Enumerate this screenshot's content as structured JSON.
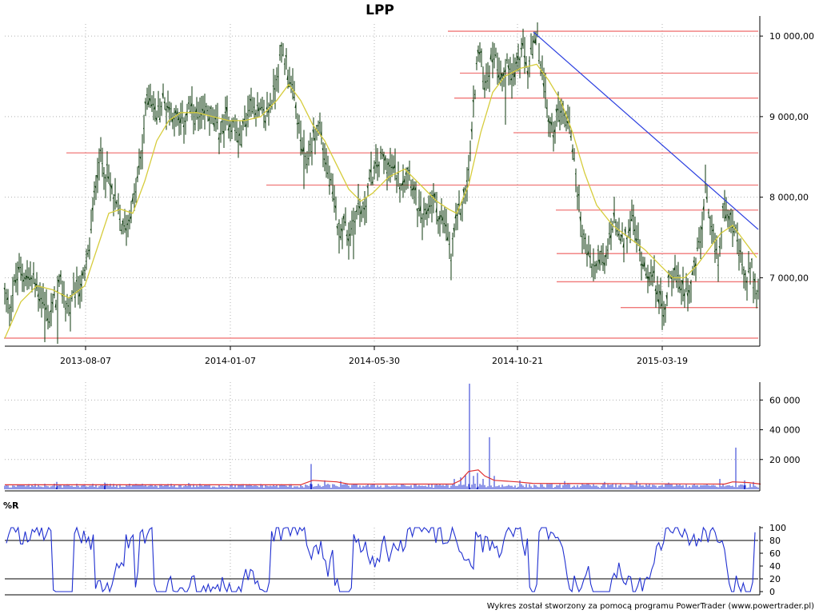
{
  "chart_data": [
    {
      "panel": "price",
      "type": "ohlc",
      "title": "LPP",
      "ylim": [
        6200,
        10150
      ],
      "y_ticks": [
        7000,
        8000,
        9000,
        10000
      ],
      "y_tick_labels": [
        "7 000,00",
        "8 000,00",
        "9 000,00",
        "10 000,00"
      ],
      "x_tick_labels": [
        "2013-08-07",
        "2014-01-07",
        "2014-05-30",
        "2014-10-21",
        "2015-03-19"
      ],
      "grid": true,
      "colors": {
        "bars": "#0c3a0c",
        "moving_average": "#d6cc3c",
        "levels": "#f07878",
        "trendline": "#2b3fe0"
      },
      "close_path": [
        [
          0,
          6800
        ],
        [
          6,
          6650
        ],
        [
          12,
          6900
        ],
        [
          20,
          7100
        ],
        [
          28,
          7000
        ],
        [
          36,
          6950
        ],
        [
          44,
          6800
        ],
        [
          50,
          6650
        ],
        [
          56,
          6500
        ],
        [
          62,
          6700
        ],
        [
          70,
          6900
        ],
        [
          76,
          6700
        ],
        [
          82,
          6600
        ],
        [
          88,
          6800
        ],
        [
          94,
          6900
        ],
        [
          100,
          7000
        ],
        [
          106,
          7400
        ],
        [
          110,
          7800
        ],
        [
          114,
          8200
        ],
        [
          118,
          8500
        ],
        [
          124,
          8400
        ],
        [
          130,
          8200
        ],
        [
          136,
          8000
        ],
        [
          142,
          7800
        ],
        [
          148,
          7600
        ],
        [
          154,
          7700
        ],
        [
          160,
          7900
        ],
        [
          166,
          8200
        ],
        [
          172,
          8600
        ],
        [
          178,
          9300
        ],
        [
          184,
          9200
        ],
        [
          190,
          9000
        ],
        [
          198,
          9200
        ],
        [
          206,
          9100
        ],
        [
          214,
          9000
        ],
        [
          222,
          8900
        ],
        [
          230,
          9100
        ],
        [
          238,
          9000
        ],
        [
          246,
          8950
        ],
        [
          254,
          9100
        ],
        [
          262,
          8900
        ],
        [
          270,
          8800
        ],
        [
          278,
          9000
        ],
        [
          286,
          8900
        ],
        [
          294,
          8700
        ],
        [
          302,
          9000
        ],
        [
          310,
          9200
        ],
        [
          318,
          9050
        ],
        [
          326,
          9000
        ],
        [
          334,
          9200
        ],
        [
          340,
          9500
        ],
        [
          346,
          9800
        ],
        [
          352,
          9700
        ],
        [
          358,
          9350
        ],
        [
          364,
          9100
        ],
        [
          370,
          8700
        ],
        [
          376,
          8400
        ],
        [
          382,
          8600
        ],
        [
          388,
          8800
        ],
        [
          394,
          8900
        ],
        [
          400,
          8500
        ],
        [
          406,
          8200
        ],
        [
          412,
          7900
        ],
        [
          418,
          7600
        ],
        [
          424,
          7700
        ],
        [
          430,
          7500
        ],
        [
          436,
          7700
        ],
        [
          442,
          7900
        ],
        [
          448,
          7800
        ],
        [
          454,
          8100
        ],
        [
          460,
          8300
        ],
        [
          466,
          8400
        ],
        [
          472,
          8500
        ],
        [
          480,
          8400
        ],
        [
          488,
          8300
        ],
        [
          496,
          8200
        ],
        [
          504,
          8400
        ],
        [
          512,
          8100
        ],
        [
          518,
          7800
        ],
        [
          524,
          7700
        ],
        [
          530,
          7900
        ],
        [
          536,
          8000
        ],
        [
          542,
          7800
        ],
        [
          548,
          7700
        ],
        [
          554,
          7500
        ],
        [
          558,
          7200
        ],
        [
          562,
          7600
        ],
        [
          568,
          7800
        ],
        [
          574,
          8000
        ],
        [
          580,
          8300
        ],
        [
          584,
          8800
        ],
        [
          588,
          9400
        ],
        [
          592,
          9800
        ],
        [
          596,
          9700
        ],
        [
          600,
          9400
        ],
        [
          606,
          9600
        ],
        [
          612,
          9800
        ],
        [
          618,
          9600
        ],
        [
          624,
          9500
        ],
        [
          630,
          9700
        ],
        [
          636,
          9500
        ],
        [
          642,
          9700
        ],
        [
          648,
          9800
        ],
        [
          654,
          9600
        ],
        [
          660,
          9800
        ],
        [
          666,
          9950
        ],
        [
          672,
          9500
        ],
        [
          678,
          9100
        ],
        [
          684,
          8800
        ],
        [
          690,
          9000
        ],
        [
          696,
          9100
        ],
        [
          702,
          9000
        ],
        [
          708,
          8800
        ],
        [
          714,
          8300
        ],
        [
          720,
          7700
        ],
        [
          726,
          7400
        ],
        [
          732,
          7200
        ],
        [
          738,
          7100
        ],
        [
          744,
          7300
        ],
        [
          750,
          7100
        ],
        [
          756,
          7500
        ],
        [
          762,
          7700
        ],
        [
          768,
          7500
        ],
        [
          774,
          7400
        ],
        [
          780,
          7600
        ],
        [
          786,
          7700
        ],
        [
          792,
          7400
        ],
        [
          798,
          7200
        ],
        [
          804,
          7100
        ],
        [
          810,
          7000
        ],
        [
          816,
          6900
        ],
        [
          820,
          6700
        ],
        [
          824,
          6500
        ],
        [
          830,
          7000
        ],
        [
          836,
          7100
        ],
        [
          842,
          6900
        ],
        [
          848,
          6900
        ],
        [
          854,
          6850
        ],
        [
          860,
          7000
        ],
        [
          866,
          7300
        ],
        [
          872,
          7600
        ],
        [
          876,
          8100
        ],
        [
          880,
          7700
        ],
        [
          886,
          7500
        ],
        [
          892,
          7200
        ],
        [
          898,
          7800
        ],
        [
          904,
          7900
        ],
        [
          910,
          7700
        ],
        [
          916,
          7400
        ],
        [
          922,
          7100
        ],
        [
          928,
          7000
        ],
        [
          934,
          7100
        ],
        [
          938,
          6900
        ],
        [
          942,
          6800
        ]
      ],
      "moving_average": [
        [
          0,
          6250
        ],
        [
          20,
          6700
        ],
        [
          40,
          6900
        ],
        [
          60,
          6850
        ],
        [
          80,
          6750
        ],
        [
          100,
          6900
        ],
        [
          110,
          7200
        ],
        [
          120,
          7500
        ],
        [
          130,
          7800
        ],
        [
          145,
          7850
        ],
        [
          160,
          7800
        ],
        [
          175,
          8200
        ],
        [
          190,
          8700
        ],
        [
          205,
          8950
        ],
        [
          220,
          9050
        ],
        [
          240,
          9050
        ],
        [
          260,
          9000
        ],
        [
          280,
          8950
        ],
        [
          300,
          8950
        ],
        [
          320,
          9000
        ],
        [
          340,
          9200
        ],
        [
          355,
          9400
        ],
        [
          370,
          9200
        ],
        [
          385,
          8900
        ],
        [
          400,
          8700
        ],
        [
          415,
          8400
        ],
        [
          430,
          8100
        ],
        [
          445,
          7950
        ],
        [
          460,
          8050
        ],
        [
          480,
          8250
        ],
        [
          500,
          8350
        ],
        [
          520,
          8150
        ],
        [
          540,
          7950
        ],
        [
          555,
          7850
        ],
        [
          565,
          7800
        ],
        [
          580,
          8150
        ],
        [
          595,
          8800
        ],
        [
          610,
          9300
        ],
        [
          625,
          9500
        ],
        [
          645,
          9600
        ],
        [
          665,
          9650
        ],
        [
          680,
          9450
        ],
        [
          695,
          9200
        ],
        [
          710,
          8800
        ],
        [
          725,
          8300
        ],
        [
          740,
          7900
        ],
        [
          760,
          7650
        ],
        [
          780,
          7500
        ],
        [
          800,
          7350
        ],
        [
          820,
          7150
        ],
        [
          835,
          7000
        ],
        [
          850,
          7000
        ],
        [
          865,
          7150
        ],
        [
          880,
          7350
        ],
        [
          895,
          7550
        ],
        [
          910,
          7650
        ],
        [
          925,
          7450
        ],
        [
          940,
          7250
        ]
      ],
      "horizontal_levels": [
        {
          "price": 10060,
          "x_start": 560,
          "x_end": 948
        },
        {
          "price": 9540,
          "x_start": 575,
          "x_end": 948
        },
        {
          "price": 9230,
          "x_start": 568,
          "x_end": 948
        },
        {
          "price": 8800,
          "x_start": 642,
          "x_end": 948
        },
        {
          "price": 8550,
          "x_start": 83,
          "x_end": 948
        },
        {
          "price": 8150,
          "x_start": 333,
          "x_end": 948
        },
        {
          "price": 7840,
          "x_start": 695,
          "x_end": 948
        },
        {
          "price": 7300,
          "x_start": 696,
          "x_end": 948
        },
        {
          "price": 6950,
          "x_start": 696,
          "x_end": 948
        },
        {
          "price": 6630,
          "x_start": 776,
          "x_end": 948
        },
        {
          "price": 6250,
          "x_start": 5,
          "x_end": 948
        }
      ],
      "trendline": {
        "from": [
          667,
          10050
        ],
        "to": [
          948,
          7600
        ]
      }
    },
    {
      "panel": "volume",
      "type": "bar",
      "ylim": [
        0,
        72000
      ],
      "y_ticks": [
        20000,
        40000,
        60000
      ],
      "y_tick_labels": [
        "20 000",
        "40 000",
        "60 000"
      ],
      "grid": true,
      "colors": {
        "bars": "#1f2fd0",
        "average": "#e03030"
      },
      "baseline": 2500,
      "spikes": [
        [
          65,
          5000
        ],
        [
          125,
          4500
        ],
        [
          230,
          4200
        ],
        [
          383,
          17000
        ],
        [
          400,
          6000
        ],
        [
          420,
          5500
        ],
        [
          562,
          7000
        ],
        [
          570,
          8000
        ],
        [
          576,
          10000
        ],
        [
          581,
          71000
        ],
        [
          586,
          9000
        ],
        [
          591,
          11000
        ],
        [
          598,
          7000
        ],
        [
          606,
          35000
        ],
        [
          612,
          9000
        ],
        [
          644,
          6000
        ],
        [
          700,
          5500
        ],
        [
          750,
          5000
        ],
        [
          790,
          5500
        ],
        [
          830,
          4500
        ],
        [
          894,
          7000
        ],
        [
          914,
          28000
        ],
        [
          925,
          6000
        ],
        [
          936,
          5000
        ]
      ],
      "average": [
        [
          0,
          3000
        ],
        [
          370,
          3000
        ],
        [
          385,
          6000
        ],
        [
          400,
          5500
        ],
        [
          415,
          5000
        ],
        [
          430,
          3500
        ],
        [
          560,
          3500
        ],
        [
          570,
          6000
        ],
        [
          580,
          12000
        ],
        [
          592,
          13000
        ],
        [
          600,
          9000
        ],
        [
          612,
          6000
        ],
        [
          640,
          5000
        ],
        [
          660,
          4000
        ],
        [
          900,
          3500
        ],
        [
          910,
          5000
        ],
        [
          930,
          4500
        ],
        [
          945,
          3500
        ]
      ]
    },
    {
      "panel": "indicator",
      "type": "line",
      "label": "%R",
      "ylim": [
        0,
        100
      ],
      "y_ticks": [
        0,
        20,
        40,
        60,
        80,
        100
      ],
      "y_tick_labels": [
        "0",
        "20",
        "40",
        "60",
        "80",
        "100"
      ],
      "reference_levels": [
        20,
        80
      ],
      "grid": true,
      "colors": {
        "line": "#1f2fd0",
        "reference": "#000000"
      },
      "seed": 7,
      "points": 320
    }
  ],
  "footer": "Wykres został stworzony za pomocą programu PowerTrader (www.powertrader.pl)"
}
